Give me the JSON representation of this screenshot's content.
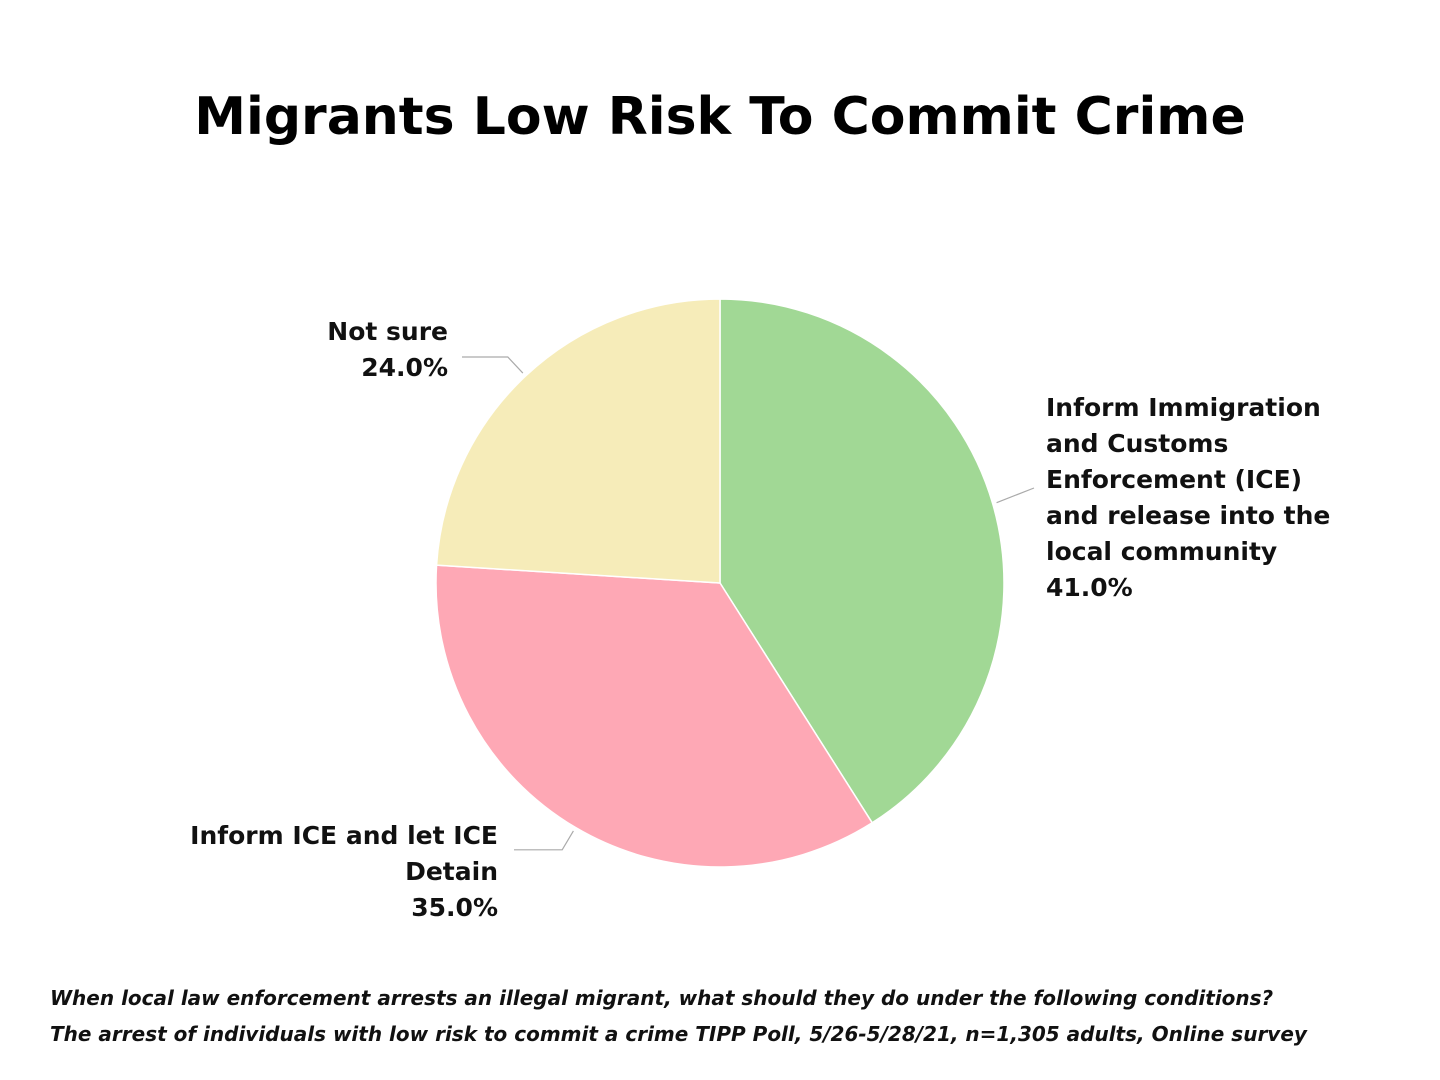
{
  "chart_data": {
    "type": "pie",
    "title": "Migrants Low Risk To Commit Crime",
    "slices": [
      {
        "label": "Inform Immigration and Customs Enforcement (ICE) and release into the local community",
        "value": 41.0,
        "value_label": "41.0%",
        "color": "#a1d895"
      },
      {
        "label": "Inform ICE and let ICE Detain",
        "value": 35.0,
        "value_label": "35.0%",
        "color": "#fea8b5"
      },
      {
        "label": "Not sure",
        "value": 24.0,
        "value_label": "24.0%",
        "color": "#f6ecb9"
      }
    ],
    "start_angle": "12 o'clock",
    "direction": "clockwise",
    "legend": "none"
  },
  "footnote": {
    "line1": "When local law enforcement arrests an illegal migrant, what should they do under the following conditions?",
    "line2": "The arrest of individuals with low risk to commit a crime TIPP Poll, 5/26-5/28/21, n=1,305 adults, Online survey"
  }
}
